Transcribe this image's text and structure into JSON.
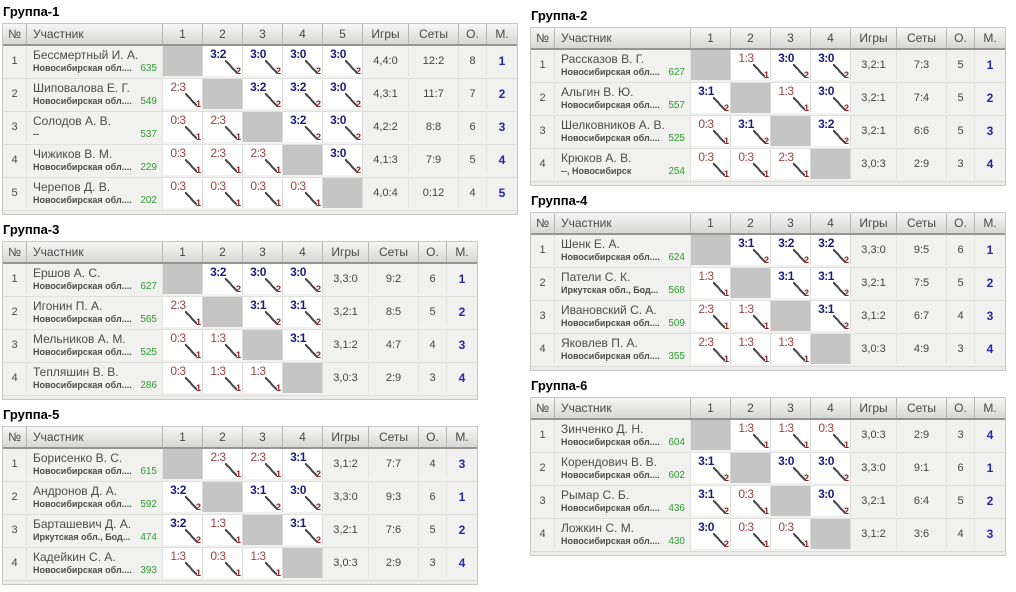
{
  "header": {
    "num": "№",
    "participant": "Участник",
    "games": "Игры",
    "sets": "Сеты",
    "points": "О.",
    "place": "М."
  },
  "colors": {
    "win": "#1b1b7e",
    "loss": "#9a4343",
    "pts": "#8b1f1f",
    "rating": "#2e9b2e",
    "place": "#2626a0",
    "self_cell": "#c5c5c5",
    "row_bg": "#f1f1ef"
  },
  "columns": {
    "left": [
      "Группа-1",
      "Группа-3",
      "Группа-5"
    ],
    "right": [
      "Группа-2",
      "Группа-4",
      "Группа-6"
    ]
  },
  "groups": [
    {
      "title": "Группа-1",
      "column": "left",
      "match_columns": [
        "1",
        "2",
        "3",
        "4",
        "5"
      ],
      "rows": [
        {
          "num": "1",
          "name": "Бессмертный И. А.",
          "region": "Новосибирская обл....",
          "rating": "635",
          "cells": [
            null,
            {
              "s": "3:2",
              "p": "2"
            },
            {
              "s": "3:0",
              "p": "2"
            },
            {
              "s": "3:0",
              "p": "2"
            },
            {
              "s": "3:0",
              "p": "2"
            }
          ],
          "games": "4,4:0",
          "sets": "12:2",
          "points": "8",
          "place": "1"
        },
        {
          "num": "2",
          "name": "Шиповалова Е. Г.",
          "region": "Новосибирская обл....",
          "rating": "549",
          "cells": [
            {
              "s": "2:3",
              "p": "1"
            },
            null,
            {
              "s": "3:2",
              "p": "2"
            },
            {
              "s": "3:2",
              "p": "2"
            },
            {
              "s": "3:0",
              "p": "2"
            }
          ],
          "games": "4,3:1",
          "sets": "11:7",
          "points": "7",
          "place": "2"
        },
        {
          "num": "3",
          "name": "Солодов А. В.",
          "region": "--",
          "rating": "537",
          "cells": [
            {
              "s": "0:3",
              "p": "1"
            },
            {
              "s": "2:3",
              "p": "1"
            },
            null,
            {
              "s": "3:2",
              "p": "2"
            },
            {
              "s": "3:0",
              "p": "2"
            }
          ],
          "games": "4,2:2",
          "sets": "8:8",
          "points": "6",
          "place": "3"
        },
        {
          "num": "4",
          "name": "Чижиков В. М.",
          "region": "Новосибирская обл....",
          "rating": "229",
          "cells": [
            {
              "s": "0:3",
              "p": "1"
            },
            {
              "s": "2:3",
              "p": "1"
            },
            {
              "s": "2:3",
              "p": "1"
            },
            null,
            {
              "s": "3:0",
              "p": "2"
            }
          ],
          "games": "4,1:3",
          "sets": "7:9",
          "points": "5",
          "place": "4"
        },
        {
          "num": "5",
          "name": "Черепов Д. В.",
          "region": "Новосибирская обл....",
          "rating": "202",
          "cells": [
            {
              "s": "0:3",
              "p": "1"
            },
            {
              "s": "0:3",
              "p": "1"
            },
            {
              "s": "0:3",
              "p": "1"
            },
            {
              "s": "0:3",
              "p": "1"
            },
            null
          ],
          "games": "4,0:4",
          "sets": "0:12",
          "points": "4",
          "place": "5"
        }
      ]
    },
    {
      "title": "Группа-2",
      "column": "right",
      "match_columns": [
        "1",
        "2",
        "3",
        "4"
      ],
      "rows": [
        {
          "num": "1",
          "name": "Рассказов В. Г.",
          "region": "Новосибирская обл....",
          "rating": "627",
          "cells": [
            null,
            {
              "s": "1:3",
              "p": "1"
            },
            {
              "s": "3:0",
              "p": "2"
            },
            {
              "s": "3:0",
              "p": "2"
            }
          ],
          "games": "3,2:1",
          "sets": "7:3",
          "points": "5",
          "place": "1"
        },
        {
          "num": "2",
          "name": "Альгин В. Ю.",
          "region": "Новосибирская обл....",
          "rating": "557",
          "cells": [
            {
              "s": "3:1",
              "p": "2"
            },
            null,
            {
              "s": "1:3",
              "p": "1"
            },
            {
              "s": "3:0",
              "p": "2"
            }
          ],
          "games": "3,2:1",
          "sets": "7:4",
          "points": "5",
          "place": "2"
        },
        {
          "num": "3",
          "name": "Шелковников А. В.",
          "region": "Новосибирская обл....",
          "rating": "525",
          "cells": [
            {
              "s": "0:3",
              "p": "1"
            },
            {
              "s": "3:1",
              "p": "2"
            },
            null,
            {
              "s": "3:2",
              "p": "2"
            }
          ],
          "games": "3,2:1",
          "sets": "6:6",
          "points": "5",
          "place": "3"
        },
        {
          "num": "4",
          "name": "Крюков А. В.",
          "region": "--, Новосибирск",
          "rating": "254",
          "cells": [
            {
              "s": "0:3",
              "p": "1"
            },
            {
              "s": "0:3",
              "p": "1"
            },
            {
              "s": "2:3",
              "p": "1"
            },
            null
          ],
          "games": "3,0:3",
          "sets": "2:9",
          "points": "3",
          "place": "4"
        }
      ]
    },
    {
      "title": "Группа-3",
      "column": "left",
      "match_columns": [
        "1",
        "2",
        "3",
        "4"
      ],
      "rows": [
        {
          "num": "1",
          "name": "Ершов А. С.",
          "region": "Новосибирская обл....",
          "rating": "627",
          "cells": [
            null,
            {
              "s": "3:2",
              "p": "2"
            },
            {
              "s": "3:0",
              "p": "2"
            },
            {
              "s": "3:0",
              "p": "2"
            }
          ],
          "games": "3,3:0",
          "sets": "9:2",
          "points": "6",
          "place": "1"
        },
        {
          "num": "2",
          "name": "Игонин П. А.",
          "region": "Новосибирская обл....",
          "rating": "565",
          "cells": [
            {
              "s": "2:3",
              "p": "1"
            },
            null,
            {
              "s": "3:1",
              "p": "2"
            },
            {
              "s": "3:1",
              "p": "2"
            }
          ],
          "games": "3,2:1",
          "sets": "8:5",
          "points": "5",
          "place": "2"
        },
        {
          "num": "3",
          "name": "Мельников А. М.",
          "region": "Новосибирская обл....",
          "rating": "525",
          "cells": [
            {
              "s": "0:3",
              "p": "1"
            },
            {
              "s": "1:3",
              "p": "1"
            },
            null,
            {
              "s": "3:1",
              "p": "2"
            }
          ],
          "games": "3,1:2",
          "sets": "4:7",
          "points": "4",
          "place": "3"
        },
        {
          "num": "4",
          "name": "Тепляшин В. В.",
          "region": "Новосибирская обл....",
          "rating": "286",
          "cells": [
            {
              "s": "0:3",
              "p": "1"
            },
            {
              "s": "1:3",
              "p": "1"
            },
            {
              "s": "1:3",
              "p": "1"
            },
            null
          ],
          "games": "3,0:3",
          "sets": "2:9",
          "points": "3",
          "place": "4"
        }
      ]
    },
    {
      "title": "Группа-4",
      "column": "right",
      "match_columns": [
        "1",
        "2",
        "3",
        "4"
      ],
      "rows": [
        {
          "num": "1",
          "name": "Шенк Е. А.",
          "region": "Новосибирская обл....",
          "rating": "624",
          "cells": [
            null,
            {
              "s": "3:1",
              "p": "2"
            },
            {
              "s": "3:2",
              "p": "2"
            },
            {
              "s": "3:2",
              "p": "2"
            }
          ],
          "games": "3,3:0",
          "sets": "9:5",
          "points": "6",
          "place": "1"
        },
        {
          "num": "2",
          "name": "Патели С. К.",
          "region": "Иркутская обл., Бод...",
          "rating": "568",
          "cells": [
            {
              "s": "1:3",
              "p": "1"
            },
            null,
            {
              "s": "3:1",
              "p": "2"
            },
            {
              "s": "3:1",
              "p": "2"
            }
          ],
          "games": "3,2:1",
          "sets": "7:5",
          "points": "5",
          "place": "2"
        },
        {
          "num": "3",
          "name": "Ивановский С. А.",
          "region": "Новосибирская обл....",
          "rating": "509",
          "cells": [
            {
              "s": "2:3",
              "p": "1"
            },
            {
              "s": "1:3",
              "p": "1"
            },
            null,
            {
              "s": "3:1",
              "p": "2"
            }
          ],
          "games": "3,1:2",
          "sets": "6:7",
          "points": "4",
          "place": "3"
        },
        {
          "num": "4",
          "name": "Яковлев П. А.",
          "region": "Новосибирская обл....",
          "rating": "355",
          "cells": [
            {
              "s": "2:3",
              "p": "1"
            },
            {
              "s": "1:3",
              "p": "1"
            },
            {
              "s": "1:3",
              "p": "1"
            },
            null
          ],
          "games": "3,0:3",
          "sets": "4:9",
          "points": "3",
          "place": "4"
        }
      ]
    },
    {
      "title": "Группа-5",
      "column": "left",
      "match_columns": [
        "1",
        "2",
        "3",
        "4"
      ],
      "rows": [
        {
          "num": "1",
          "name": "Борисенко В. С.",
          "region": "Новосибирская обл....",
          "rating": "615",
          "cells": [
            null,
            {
              "s": "2:3",
              "p": "1"
            },
            {
              "s": "2:3",
              "p": "1"
            },
            {
              "s": "3:1",
              "p": "2"
            }
          ],
          "games": "3,1:2",
          "sets": "7:7",
          "points": "4",
          "place": "3"
        },
        {
          "num": "2",
          "name": "Андронов Д. А.",
          "region": "Новосибирская обл....",
          "rating": "592",
          "cells": [
            {
              "s": "3:2",
              "p": "2"
            },
            null,
            {
              "s": "3:1",
              "p": "2"
            },
            {
              "s": "3:0",
              "p": "2"
            }
          ],
          "games": "3,3:0",
          "sets": "9:3",
          "points": "6",
          "place": "1"
        },
        {
          "num": "3",
          "name": "Барташевич Д. А.",
          "region": "Иркутская обл., Бод...",
          "rating": "474",
          "cells": [
            {
              "s": "3:2",
              "p": "2"
            },
            {
              "s": "1:3",
              "p": "1"
            },
            null,
            {
              "s": "3:1",
              "p": "2"
            }
          ],
          "games": "3,2:1",
          "sets": "7:6",
          "points": "5",
          "place": "2"
        },
        {
          "num": "4",
          "name": "Кадейкин С. А.",
          "region": "Новосибирская обл....",
          "rating": "393",
          "cells": [
            {
              "s": "1:3",
              "p": "1"
            },
            {
              "s": "0:3",
              "p": "1"
            },
            {
              "s": "1:3",
              "p": "1"
            },
            null
          ],
          "games": "3,0:3",
          "sets": "2:9",
          "points": "3",
          "place": "4"
        }
      ]
    },
    {
      "title": "Группа-6",
      "column": "right",
      "match_columns": [
        "1",
        "2",
        "3",
        "4"
      ],
      "rows": [
        {
          "num": "1",
          "name": "Зинченко Д. Н.",
          "region": "Новосибирская обл....",
          "rating": "604",
          "cells": [
            null,
            {
              "s": "1:3",
              "p": "1"
            },
            {
              "s": "1:3",
              "p": "1"
            },
            {
              "s": "0:3",
              "p": "1"
            }
          ],
          "games": "3,0:3",
          "sets": "2:9",
          "points": "3",
          "place": "4"
        },
        {
          "num": "2",
          "name": "Корендович В. В.",
          "region": "Новосибирская обл....",
          "rating": "602",
          "cells": [
            {
              "s": "3:1",
              "p": "2"
            },
            null,
            {
              "s": "3:0",
              "p": "2"
            },
            {
              "s": "3:0",
              "p": "2"
            }
          ],
          "games": "3,3:0",
          "sets": "9:1",
          "points": "6",
          "place": "1"
        },
        {
          "num": "3",
          "name": "Рымар С. Б.",
          "region": "Новосибирская обл....",
          "rating": "436",
          "cells": [
            {
              "s": "3:1",
              "p": "2"
            },
            {
              "s": "0:3",
              "p": "1"
            },
            null,
            {
              "s": "3:0",
              "p": "2"
            }
          ],
          "games": "3,2:1",
          "sets": "6:4",
          "points": "5",
          "place": "2"
        },
        {
          "num": "4",
          "name": "Ложкин С. М.",
          "region": "Новосибирская обл....",
          "rating": "430",
          "cells": [
            {
              "s": "3:0",
              "p": "2"
            },
            {
              "s": "0:3",
              "p": "1"
            },
            {
              "s": "0:3",
              "p": "1"
            },
            null
          ],
          "games": "3,1:2",
          "sets": "3:6",
          "points": "4",
          "place": "3"
        }
      ]
    }
  ]
}
